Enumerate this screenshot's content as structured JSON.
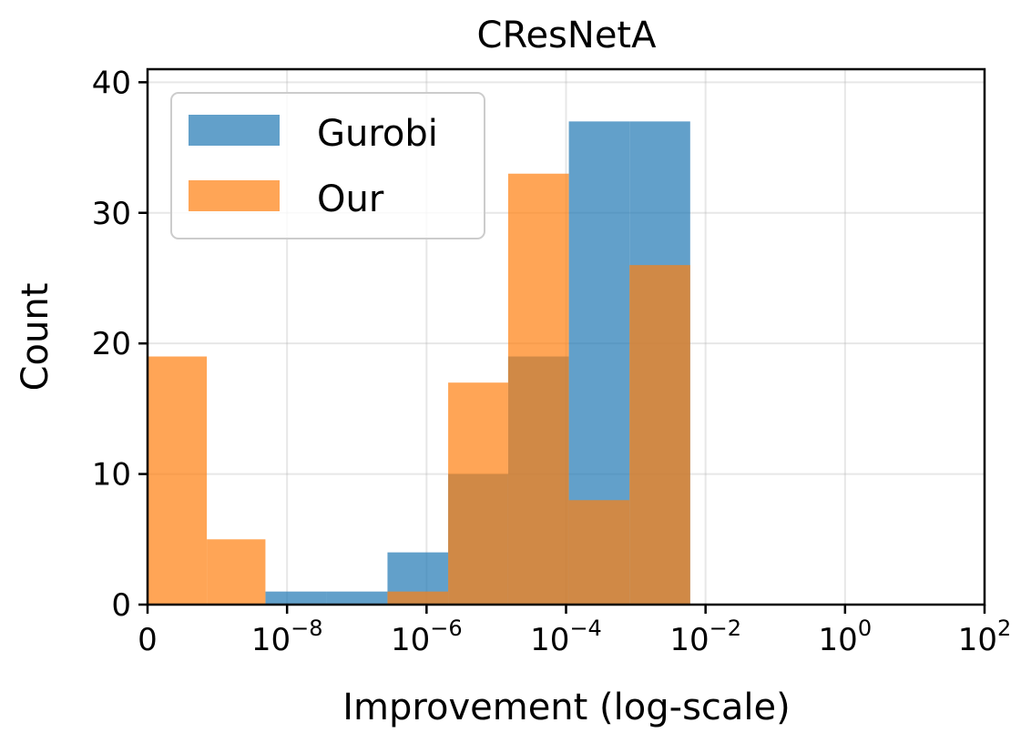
{
  "chart_data": {
    "type": "bar",
    "title": "CResNetA",
    "xlabel": "Improvement (log-scale)",
    "ylabel": "Count",
    "x_scale": "symlog",
    "xlim_exponent": [
      -10,
      2
    ],
    "x_ticks": [
      {
        "base": "0",
        "exp": ""
      },
      {
        "base": "10",
        "exp": "−8"
      },
      {
        "base": "10",
        "exp": "−6"
      },
      {
        "base": "10",
        "exp": "−4"
      },
      {
        "base": "10",
        "exp": "−2"
      },
      {
        "base": "10",
        "exp": "0"
      },
      {
        "base": "10",
        "exp": "2"
      }
    ],
    "ylim": [
      0,
      41
    ],
    "y_ticks": [
      "0",
      "10",
      "20",
      "30",
      "40"
    ],
    "grid": true,
    "legend_position": "top-left",
    "series": [
      {
        "name": "Gurobi",
        "color": "#1f77b4",
        "opacity": 0.7,
        "bins": [
          {
            "from": -7.44,
            "to": -6.56,
            "count": 1
          },
          {
            "from": -6.56,
            "to": -5.69,
            "count": 4
          },
          {
            "from": -5.69,
            "to": -4.83,
            "count": 10
          },
          {
            "from": -4.83,
            "to": -3.96,
            "count": 19
          },
          {
            "from": -3.96,
            "to": -3.09,
            "count": 37
          },
          {
            "from": -3.09,
            "to": -2.22,
            "count": 37
          }
        ],
        "bins_extra": [
          {
            "from": -8.31,
            "to": -7.44,
            "count": 1
          }
        ]
      },
      {
        "name": "Our",
        "color": "#ff7f0e",
        "opacity": 0.7,
        "bins": [
          {
            "from": -10.0,
            "to": -9.15,
            "count": 19
          },
          {
            "from": -9.15,
            "to": -8.31,
            "count": 5
          },
          {
            "from": -6.56,
            "to": -5.69,
            "count": 1
          },
          {
            "from": -5.69,
            "to": -4.83,
            "count": 17
          },
          {
            "from": -4.83,
            "to": -3.96,
            "count": 33
          },
          {
            "from": -3.96,
            "to": -3.09,
            "count": 8
          },
          {
            "from": -3.09,
            "to": -2.22,
            "count": 26
          }
        ]
      }
    ]
  }
}
